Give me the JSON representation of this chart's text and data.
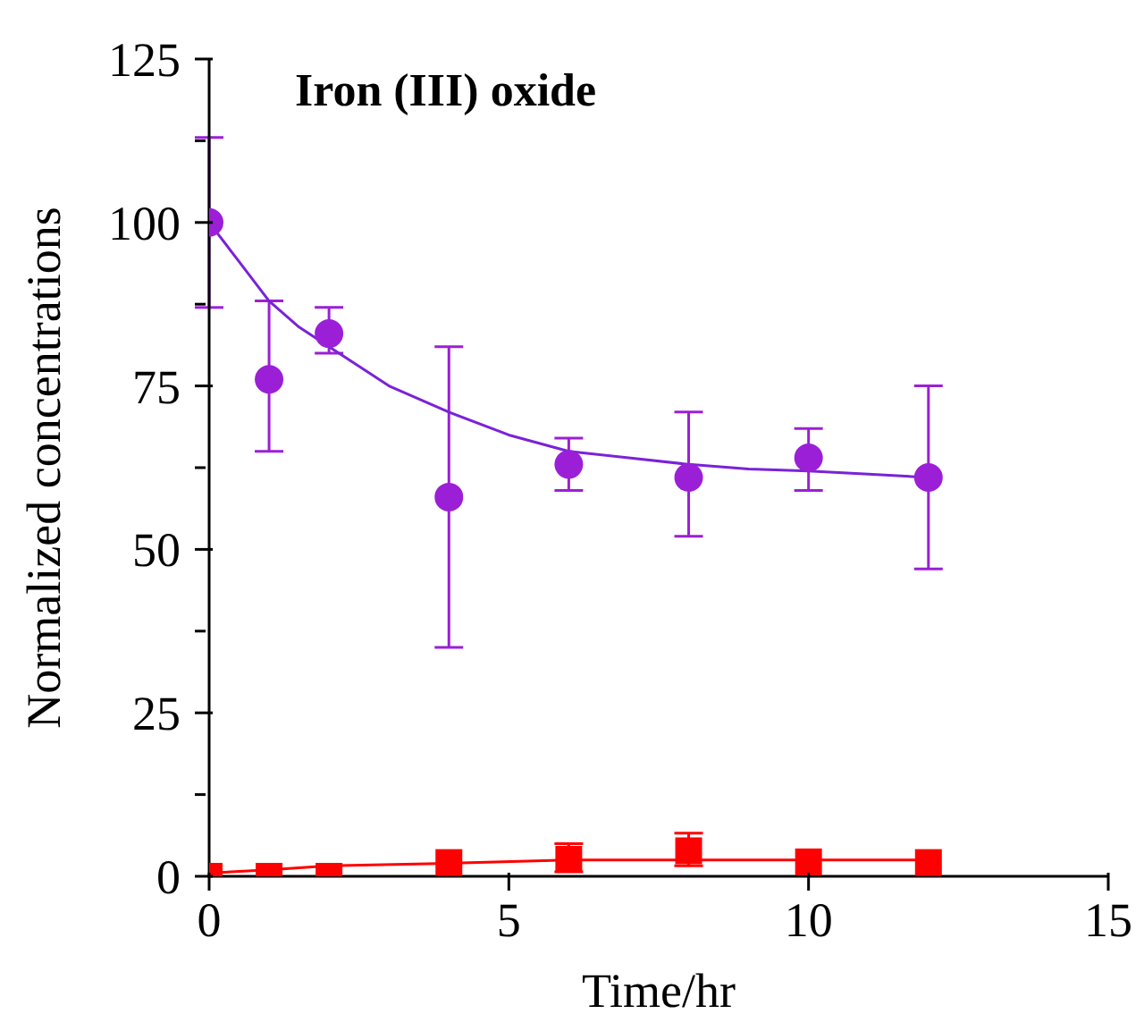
{
  "chart_data": {
    "type": "scatter",
    "title": "Iron (III) oxide",
    "xlabel": "Time/hr",
    "ylabel": "Normalized concentrations",
    "xlim": [
      0,
      15
    ],
    "xticks": [
      0,
      5,
      10,
      15
    ],
    "ylim": [
      0,
      125
    ],
    "yticks": [
      0,
      {
        "value": 12.5,
        "label": null
      },
      25,
      {
        "value": 37.5,
        "label": null
      },
      50,
      {
        "value": 62.5,
        "label": null
      },
      75,
      {
        "value": 87.5,
        "label": null
      },
      100,
      {
        "value": 112.5,
        "label": null
      },
      125
    ],
    "grid": false,
    "legend": false,
    "series": [
      {
        "marker": "circle",
        "color": "#9b1fd6",
        "x": [
          0,
          1,
          2,
          4,
          6,
          8,
          10,
          12
        ],
        "values": [
          100,
          76,
          83,
          58,
          63,
          61,
          64,
          61
        ],
        "errors": [
          [
            87,
            113
          ],
          [
            65,
            88
          ],
          [
            80,
            87
          ],
          [
            35,
            81
          ],
          [
            59,
            67
          ],
          [
            52,
            71
          ],
          [
            59,
            68.5
          ],
          [
            47,
            75
          ]
        ]
      },
      {
        "type": "line",
        "marker": "none",
        "color": "#7a22d8",
        "x": [
          0,
          0.5,
          1,
          1.5,
          2,
          3,
          4,
          5,
          6,
          7,
          8,
          9,
          10,
          11,
          12
        ],
        "values": [
          100,
          94,
          88,
          84,
          81,
          75,
          71,
          67.5,
          65,
          64,
          63,
          62.3,
          62,
          61.5,
          61
        ]
      },
      {
        "marker": "square",
        "color": "#ff0000",
        "x": [
          0,
          1,
          2,
          4,
          6,
          8,
          10,
          12
        ],
        "values": [
          0,
          0,
          0,
          2.1,
          2.6,
          3.9,
          2.2,
          2.1
        ],
        "errors": [
          null,
          null,
          null,
          null,
          [
            0.7,
            5
          ],
          [
            1.6,
            6.6
          ],
          null,
          null
        ]
      },
      {
        "type": "line",
        "marker": "none",
        "color": "#ff0000",
        "x": [
          0,
          1,
          2,
          4,
          6,
          8,
          10,
          12
        ],
        "values": [
          0.5,
          1,
          1.6,
          2,
          2.5,
          2.5,
          2.5,
          2.5
        ]
      }
    ]
  }
}
